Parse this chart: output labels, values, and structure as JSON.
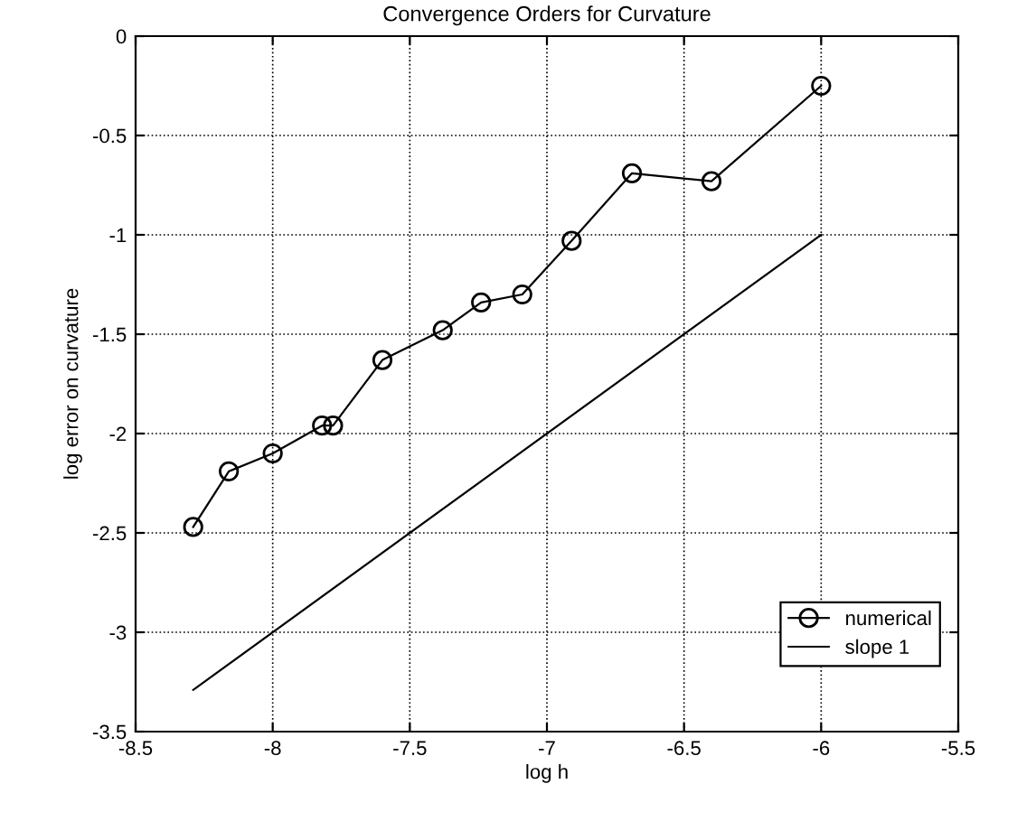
{
  "chart_data": {
    "type": "line",
    "title": "Convergence Orders for Curvature",
    "xlabel": "log h",
    "ylabel": "log error on curvature",
    "series": [
      {
        "name": "numerical",
        "color": "#000000",
        "marker": "circle",
        "x": [
          -8.29,
          -8.16,
          -8.0,
          -7.82,
          -7.78,
          -7.6,
          -7.38,
          -7.24,
          -7.09,
          -6.91,
          -6.69,
          -6.4,
          -6.0
        ],
        "values": [
          -2.47,
          -2.19,
          -2.1,
          -1.96,
          -1.96,
          -1.63,
          -1.48,
          -1.34,
          -1.3,
          -1.03,
          -0.69,
          -0.73,
          -0.25
        ]
      },
      {
        "name": "slope 1",
        "color": "#000000",
        "marker": "none",
        "x": [
          -8.29,
          -6.0
        ],
        "values": [
          -3.29,
          -1.0
        ]
      }
    ],
    "xlim": [
      -8.5,
      -5.5
    ],
    "xticks": [
      -8.5,
      -8,
      -7.5,
      -7,
      -6.5,
      -6,
      -5.5
    ],
    "ylim": [
      -3.5,
      0
    ],
    "yticks": [
      -3.5,
      -3,
      -2.5,
      -2,
      -1.5,
      -1,
      -0.5,
      0
    ],
    "grid": true,
    "legend": "bottom right"
  }
}
